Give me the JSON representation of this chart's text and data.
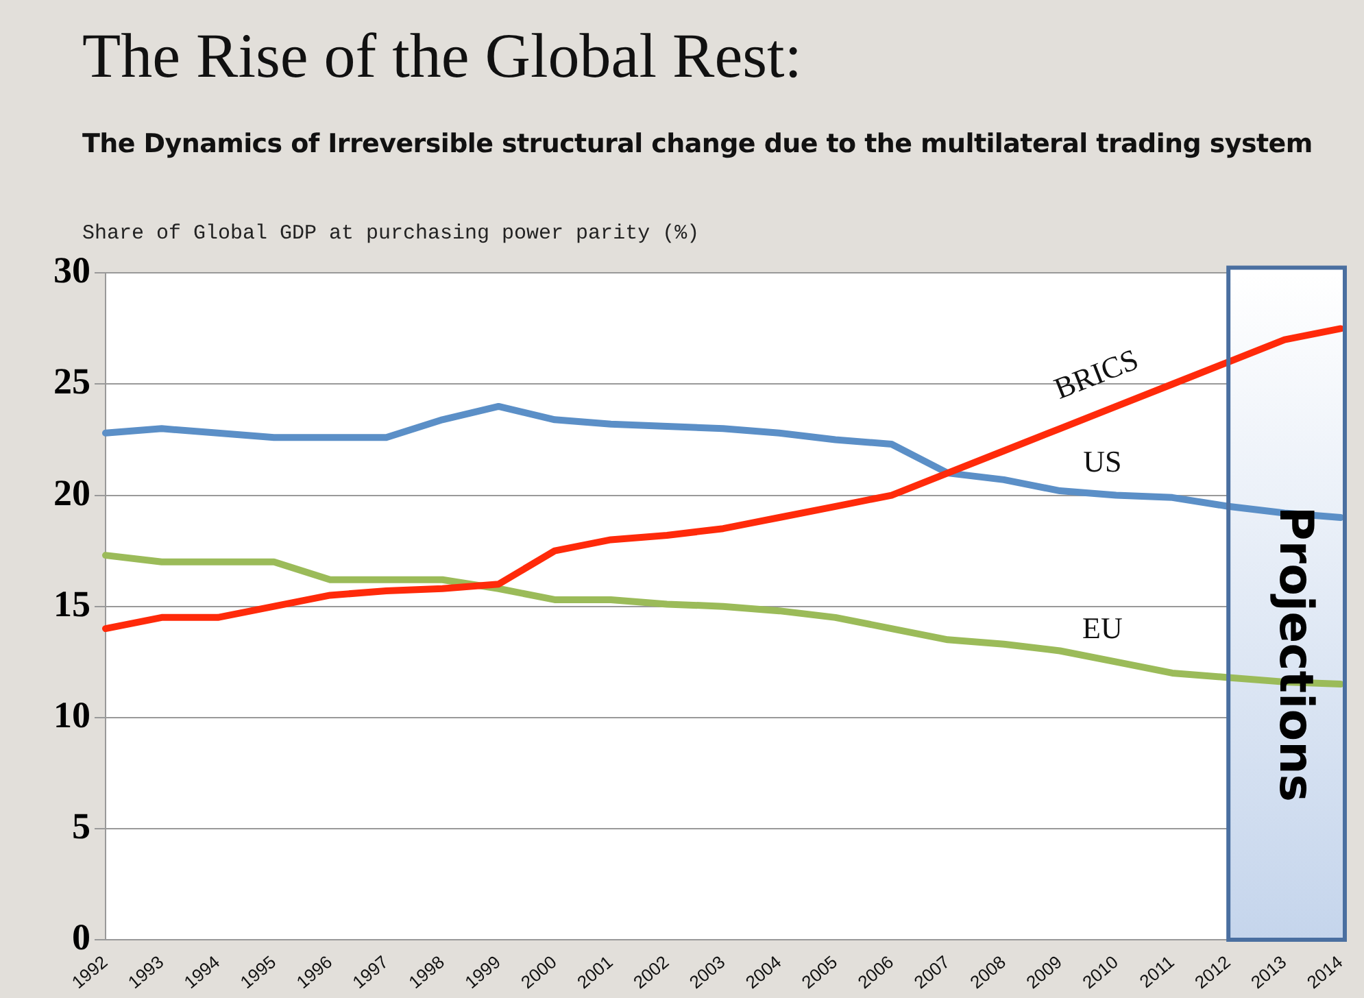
{
  "chart_data": {
    "type": "line",
    "title": "The Rise of the Global Rest:",
    "subtitle": "The Dynamics of Irreversible structural change due to the multilateral trading system",
    "ylabel": "Share of Global GDP at purchasing power parity (%)",
    "categories": [
      "1992",
      "1993",
      "1994",
      "1995",
      "1996",
      "1997",
      "1998",
      "1999",
      "2000",
      "2001",
      "2002",
      "2003",
      "2004",
      "2005",
      "2006",
      "2007",
      "2008",
      "2009",
      "2010",
      "2011",
      "2012",
      "2013",
      "2014"
    ],
    "series": [
      {
        "name": "BRICS",
        "color": "#ff2a0a",
        "values": [
          14.0,
          14.5,
          14.5,
          15.0,
          15.5,
          15.7,
          15.8,
          16.0,
          17.5,
          18.0,
          18.2,
          18.5,
          19.0,
          19.5,
          20.0,
          21.0,
          22.0,
          23.0,
          24.0,
          25.0,
          26.0,
          27.0,
          27.5
        ]
      },
      {
        "name": "US",
        "color": "#5b8fc7",
        "values": [
          22.8,
          23.0,
          22.8,
          22.6,
          22.6,
          22.6,
          23.4,
          24.0,
          23.4,
          23.2,
          23.1,
          23.0,
          22.8,
          22.5,
          22.3,
          21.0,
          20.7,
          20.2,
          20.0,
          19.9,
          19.5,
          19.2,
          19.0
        ]
      },
      {
        "name": "EU",
        "color": "#9bbb59",
        "values": [
          17.3,
          17.0,
          17.0,
          17.0,
          16.2,
          16.2,
          16.2,
          15.8,
          15.3,
          15.3,
          15.1,
          15.0,
          14.8,
          14.5,
          14.0,
          13.5,
          13.3,
          13.0,
          12.5,
          12.0,
          11.8,
          11.6,
          11.5
        ]
      }
    ],
    "ylim": [
      0,
      30
    ],
    "yticks": [
      0,
      5,
      10,
      15,
      20,
      25,
      30
    ],
    "grid": "y",
    "legend": false,
    "marker": "none",
    "line_style": "solid",
    "bands": [
      {
        "axis": "x",
        "from": "2012",
        "to": "2014",
        "label": "Projections",
        "color": "#4a6fa0"
      }
    ]
  }
}
